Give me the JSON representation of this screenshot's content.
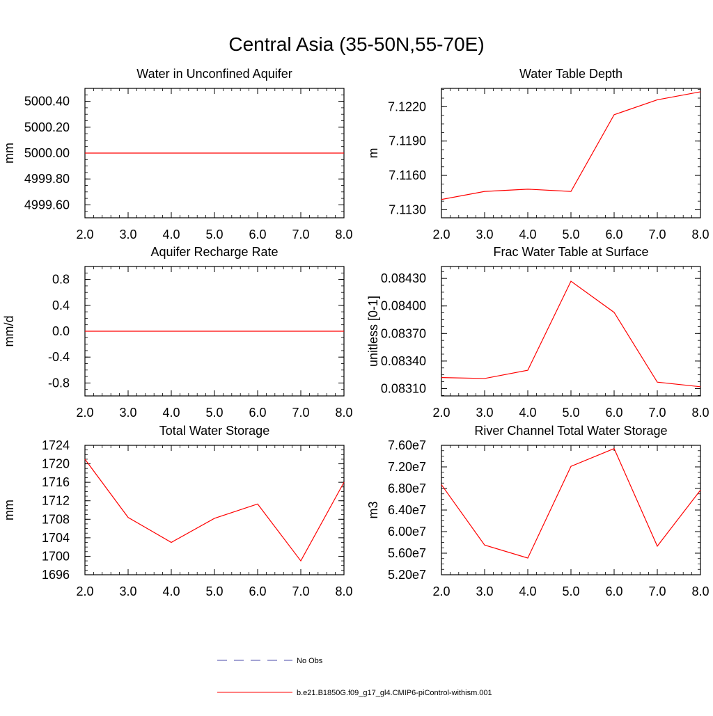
{
  "figure": {
    "title": "Central Asia (35-50N,55-70E)",
    "legend": [
      {
        "label": "No Obs",
        "color": "#4a4aa8",
        "style": "dashed"
      },
      {
        "label": "b.e21.B1850G.f09_g17_gl4.CMIP6-piControl-withism.001",
        "color": "#ff0000",
        "style": "solid"
      }
    ]
  },
  "chart_data": [
    {
      "type": "line",
      "title": "Water in Unconfined Aquifer",
      "ylabel": "mm",
      "x": [
        2.0,
        3.0,
        4.0,
        5.0,
        6.0,
        7.0,
        8.0
      ],
      "xlim": [
        2.0,
        8.0
      ],
      "xticks": [
        "2.0",
        "3.0",
        "4.0",
        "5.0",
        "6.0",
        "7.0",
        "8.0"
      ],
      "ylim": [
        4999.5,
        5000.5
      ],
      "yticks": [
        4999.6,
        4999.8,
        5000.0,
        5000.2,
        5000.4
      ],
      "ytick_labels": [
        "4999.60",
        "4999.80",
        "5000.00",
        "5000.20",
        "5000.40"
      ],
      "series": [
        {
          "values": [
            5000.0,
            5000.0,
            5000.0,
            5000.0,
            5000.0,
            5000.0,
            5000.0
          ],
          "color": "#ff0000"
        }
      ]
    },
    {
      "type": "line",
      "title": "Water Table Depth",
      "ylabel": "m",
      "x": [
        2.0,
        3.0,
        4.0,
        5.0,
        6.0,
        7.0,
        8.0
      ],
      "xlim": [
        2.0,
        8.0
      ],
      "xticks": [
        "2.0",
        "3.0",
        "4.0",
        "5.0",
        "6.0",
        "7.0",
        "8.0"
      ],
      "ylim": [
        7.1123,
        7.1236
      ],
      "yticks": [
        7.113,
        7.116,
        7.119,
        7.122
      ],
      "ytick_labels": [
        "7.1130",
        "7.1160",
        "7.1190",
        "7.1220"
      ],
      "series": [
        {
          "values": [
            7.1139,
            7.1146,
            7.1148,
            7.1146,
            7.1213,
            7.1226,
            7.1233
          ],
          "color": "#ff0000"
        }
      ]
    },
    {
      "type": "line",
      "title": "Aquifer Recharge Rate",
      "ylabel": "mm/d",
      "x": [
        2.0,
        3.0,
        4.0,
        5.0,
        6.0,
        7.0,
        8.0
      ],
      "xlim": [
        2.0,
        8.0
      ],
      "xticks": [
        "2.0",
        "3.0",
        "4.0",
        "5.0",
        "6.0",
        "7.0",
        "8.0"
      ],
      "ylim": [
        -1.0,
        1.0
      ],
      "yticks": [
        -0.8,
        -0.4,
        0.0,
        0.4,
        0.8
      ],
      "ytick_labels": [
        "-0.8",
        "-0.4",
        "0.0",
        "0.4",
        "0.8"
      ],
      "series": [
        {
          "values": [
            0.0,
            0.0,
            0.0,
            0.0,
            0.0,
            0.0,
            0.0
          ],
          "color": "#ff0000"
        }
      ]
    },
    {
      "type": "line",
      "title": "Frac Water Table at Surface",
      "ylabel": "unitless [0-1]",
      "x": [
        2.0,
        3.0,
        4.0,
        5.0,
        6.0,
        7.0,
        8.0
      ],
      "xlim": [
        2.0,
        8.0
      ],
      "xticks": [
        "2.0",
        "3.0",
        "4.0",
        "5.0",
        "6.0",
        "7.0",
        "8.0"
      ],
      "ylim": [
        0.08302,
        0.08443
      ],
      "yticks": [
        0.0831,
        0.0834,
        0.0837,
        0.084,
        0.0843
      ],
      "ytick_labels": [
        "0.08310",
        "0.08340",
        "0.08370",
        "0.08400",
        "0.08430"
      ],
      "series": [
        {
          "values": [
            0.08322,
            0.08321,
            0.0833,
            0.08427,
            0.08393,
            0.08317,
            0.08312
          ],
          "color": "#ff0000"
        }
      ]
    },
    {
      "type": "line",
      "title": "Total Water Storage",
      "ylabel": "mm",
      "x": [
        2.0,
        3.0,
        4.0,
        5.0,
        6.0,
        7.0,
        8.0
      ],
      "xlim": [
        2.0,
        8.0
      ],
      "xticks": [
        "2.0",
        "3.0",
        "4.0",
        "5.0",
        "6.0",
        "7.0",
        "8.0"
      ],
      "ylim": [
        1696,
        1724
      ],
      "yticks": [
        1696,
        1700,
        1704,
        1708,
        1712,
        1716,
        1720,
        1724
      ],
      "ytick_labels": [
        "1696",
        "1700",
        "1704",
        "1708",
        "1712",
        "1716",
        "1720",
        "1724"
      ],
      "series": [
        {
          "values": [
            1721,
            1708.4,
            1703,
            1708.2,
            1711.3,
            1699,
            1716
          ],
          "color": "#ff0000"
        }
      ]
    },
    {
      "type": "line",
      "title": "River Channel Total Water Storage",
      "ylabel": "m3",
      "x": [
        2.0,
        3.0,
        4.0,
        5.0,
        6.0,
        7.0,
        8.0
      ],
      "xlim": [
        2.0,
        8.0
      ],
      "xticks": [
        "2.0",
        "3.0",
        "4.0",
        "5.0",
        "6.0",
        "7.0",
        "8.0"
      ],
      "ylim": [
        52000000,
        76000000
      ],
      "yticks": [
        52000000,
        56000000,
        60000000,
        64000000,
        68000000,
        72000000,
        76000000
      ],
      "ytick_labels": [
        "5.20e7",
        "5.60e7",
        "6.00e7",
        "6.40e7",
        "6.80e7",
        "7.20e7",
        "7.60e7"
      ],
      "series": [
        {
          "values": [
            68700000,
            57500000,
            55100000,
            72100000,
            75400000,
            57300000,
            67700000
          ],
          "color": "#ff0000"
        }
      ]
    }
  ]
}
